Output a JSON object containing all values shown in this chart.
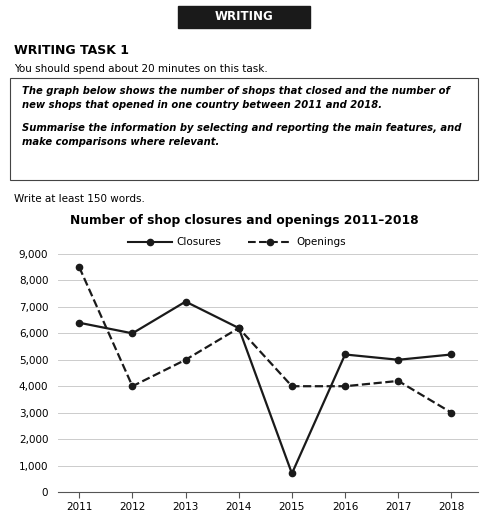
{
  "title": "Number of shop closures and openings 2011–2018",
  "years": [
    2011,
    2012,
    2013,
    2014,
    2015,
    2016,
    2017,
    2018
  ],
  "closures": [
    6400,
    6000,
    7200,
    6200,
    700,
    5200,
    5000,
    5200
  ],
  "openings": [
    8500,
    4000,
    5000,
    6200,
    4000,
    4000,
    4200,
    3000
  ],
  "ylim": [
    0,
    9000
  ],
  "yticks": [
    0,
    1000,
    2000,
    3000,
    4000,
    5000,
    6000,
    7000,
    8000,
    9000
  ],
  "ytick_labels": [
    "0",
    "1,000",
    "2,000",
    "3,000",
    "4,000",
    "5,000",
    "6,000",
    "7,000",
    "8,000",
    "9,000"
  ],
  "header_text": "WRITING",
  "task_title": "WRITING TASK 1",
  "task_subtitle": "You should spend about 20 minutes on this task.",
  "box_text1": "The graph below shows the number of shops that closed and the number of\nnew shops that opened in one country between 2011 and 2018.",
  "box_text2": "Summarise the information by selecting and reporting the main features, and\nmake comparisons where relevant.",
  "footer_text": "Write at least 150 words.",
  "legend_closures": "Closures",
  "legend_openings": "Openings",
  "bg_color": "#ffffff",
  "line_color": "#1a1a1a",
  "grid_color": "#cccccc"
}
